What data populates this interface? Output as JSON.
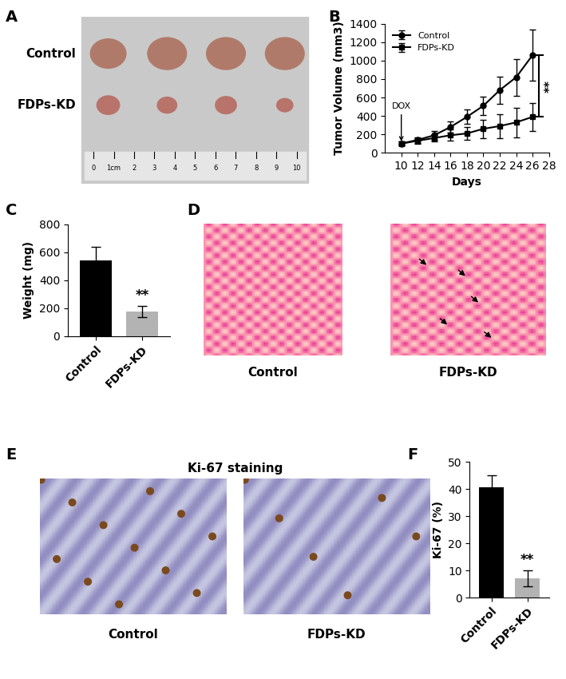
{
  "panel_labels": [
    "A",
    "B",
    "C",
    "D",
    "E",
    "F"
  ],
  "chart_data": [
    {
      "type": "line",
      "xlabel": "Days",
      "ylabel": "Tumor Volume (mm3)",
      "x": [
        10,
        12,
        14,
        16,
        18,
        20,
        22,
        24,
        26
      ],
      "series": [
        {
          "name": "Control",
          "color": "#000000",
          "marker": "circle",
          "values": [
            100,
            140,
            190,
            280,
            390,
            510,
            680,
            820,
            1060
          ],
          "errors": [
            20,
            30,
            50,
            60,
            80,
            100,
            150,
            200,
            280
          ]
        },
        {
          "name": "FDPs-KD",
          "color": "#000000",
          "marker": "square",
          "values": [
            100,
            130,
            160,
            190,
            210,
            260,
            290,
            330,
            390
          ],
          "errors": [
            20,
            30,
            40,
            60,
            70,
            100,
            130,
            160,
            150
          ]
        }
      ],
      "xlim": [
        8,
        28
      ],
      "xticks": [
        10,
        12,
        14,
        16,
        18,
        20,
        22,
        24,
        26,
        28
      ],
      "ylim": [
        0,
        1400
      ],
      "yticks": [
        0,
        200,
        400,
        600,
        800,
        1000,
        1200,
        1400
      ],
      "legend": "upper left",
      "annotations": [
        {
          "text": "DOX",
          "x": 10,
          "y": 100
        },
        {
          "text": "**"
        }
      ]
    },
    {
      "type": "bar",
      "ylabel": "Weight (mg)",
      "categories": [
        "Control",
        "FDPs-KD"
      ],
      "values": [
        540,
        175
      ],
      "errors": [
        100,
        40
      ],
      "colors": [
        "#000000",
        "#b3b3b3"
      ],
      "ylim": [
        0,
        800
      ],
      "yticks": [
        0,
        200,
        400,
        600,
        800
      ],
      "annotations": [
        {
          "text": "**",
          "category": "FDPs-KD"
        }
      ]
    },
    {
      "type": "bar",
      "ylabel": "Ki-67 (%)",
      "categories": [
        "Control",
        "FDPs-KD"
      ],
      "values": [
        40.5,
        7
      ],
      "errors": [
        4.5,
        3
      ],
      "colors": [
        "#000000",
        "#b3b3b3"
      ],
      "ylim": [
        0,
        50
      ],
      "yticks": [
        0,
        10,
        20,
        30,
        40,
        50
      ],
      "annotations": [
        {
          "text": "**",
          "category": "FDPs-KD"
        }
      ]
    }
  ],
  "images": {
    "A": {
      "rows": [
        "Control",
        "FDPs-KD"
      ],
      "ruler": [
        "0",
        "1cm",
        "2",
        "3",
        "4",
        "5",
        "6",
        "7",
        "8",
        "9",
        "10"
      ]
    },
    "D": {
      "captions": [
        "Control",
        "FDPs-KD"
      ]
    },
    "E": {
      "title": "Ki-67 staining",
      "captions": [
        "Control",
        "FDPs-KD"
      ]
    }
  }
}
